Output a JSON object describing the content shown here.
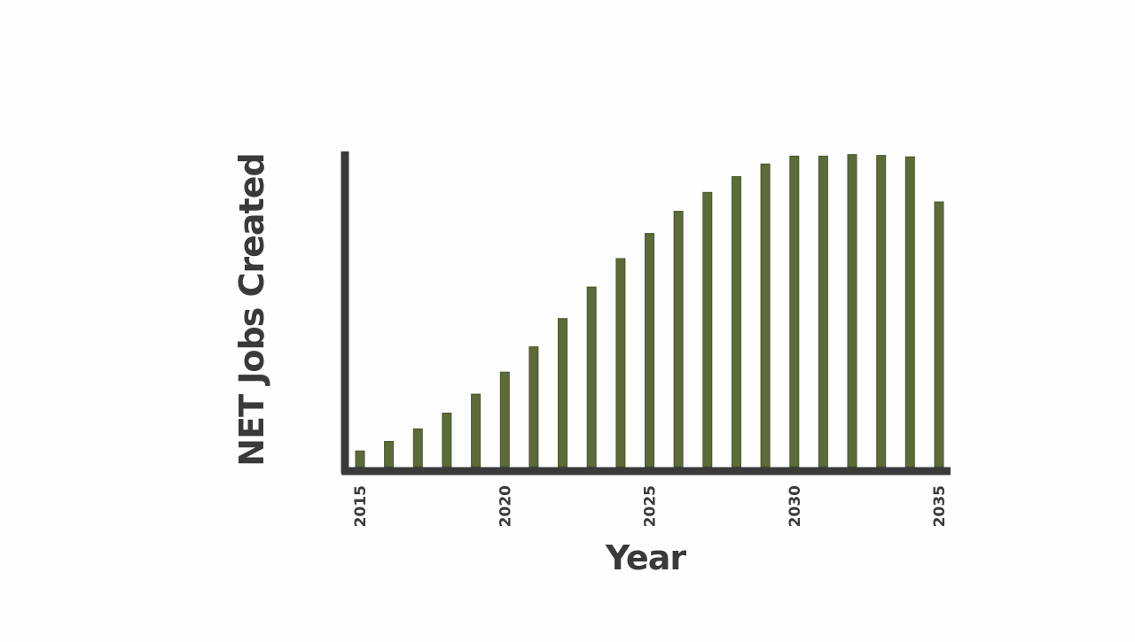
{
  "colors": {
    "bar": "#5c6b37",
    "bar_edge": "#4a572b",
    "axis": "#3a3a3a",
    "background": "#fefefe"
  },
  "chart_data": {
    "type": "bar",
    "title": "",
    "xlabel": "Year",
    "ylabel": "NET Jobs Created",
    "x": [
      2015,
      2016,
      2017,
      2018,
      2019,
      2020,
      2021,
      2022,
      2023,
      2024,
      2025,
      2026,
      2027,
      2028,
      2029,
      2030,
      2031,
      2032,
      2033,
      2034,
      2035
    ],
    "values": [
      5,
      8,
      12,
      17,
      23,
      30,
      38,
      47,
      57,
      66,
      74,
      81,
      87,
      92,
      96,
      98.5,
      98.5,
      99,
      98.7,
      98.3,
      84
    ],
    "xticks": [
      "2015",
      "2020",
      "2025",
      "2030",
      "2035"
    ],
    "ylim": [
      0,
      100
    ],
    "grid": false,
    "legend": "none"
  }
}
